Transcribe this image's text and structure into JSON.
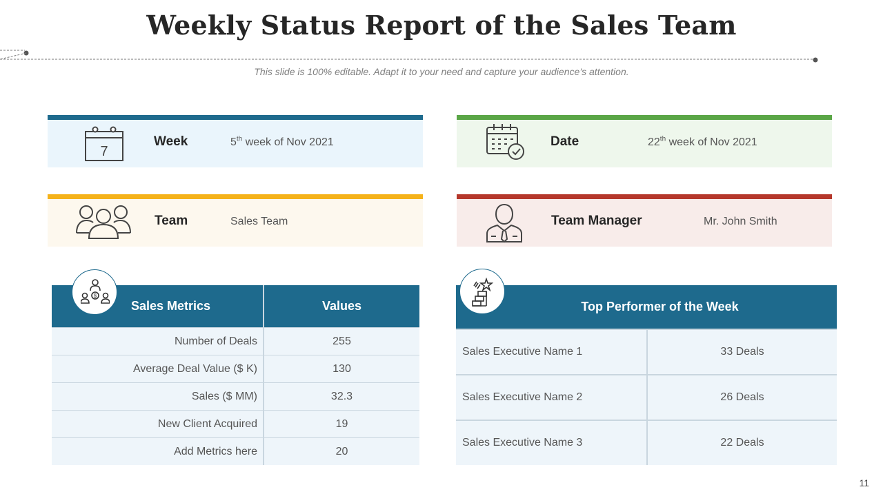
{
  "title": "Weekly Status Report of the Sales Team",
  "subtitle": "This slide is 100% editable. Adapt it to your need and capture your audience’s attention.",
  "cards": {
    "week": {
      "label": "Week",
      "value_pre": "5",
      "value_sup": "th",
      "value_post": " week of Nov 2021",
      "calendar_day": "7",
      "accent": "#1e6a8d",
      "bg": "#eaf5fc"
    },
    "date": {
      "label": "Date",
      "value_pre": "22",
      "value_sup": "th",
      "value_post": " week of Nov 2021",
      "accent": "#5aa646",
      "bg": "#eef7ec"
    },
    "team": {
      "label": "Team",
      "value": "Sales Team",
      "accent": "#f5b21a",
      "bg": "#fdf8ee"
    },
    "manager": {
      "label": "Team Manager",
      "value": "Mr. John Smith",
      "accent": "#b5372b",
      "bg": "#f8ecea"
    }
  },
  "metrics": {
    "headers": [
      "Sales Metrics",
      "Values"
    ],
    "rows": [
      {
        "name": "Number of Deals",
        "value": "255"
      },
      {
        "name": "Average Deal Value ($ K)",
        "value": "130"
      },
      {
        "name": "Sales ($ MM)",
        "value": "32.3"
      },
      {
        "name": "New Client Acquired",
        "value": "19"
      },
      {
        "name": "Add Metrics here",
        "value": "20"
      }
    ]
  },
  "performers": {
    "header": "Top Performer of the Week",
    "rows": [
      {
        "name": "Sales Executive  Name 1",
        "deals": "33 Deals"
      },
      {
        "name": "Sales Executive  Name 2",
        "deals": "26 Deals"
      },
      {
        "name": "Sales Executive  Name 3",
        "deals": "22 Deals"
      }
    ]
  },
  "page_number": "11"
}
